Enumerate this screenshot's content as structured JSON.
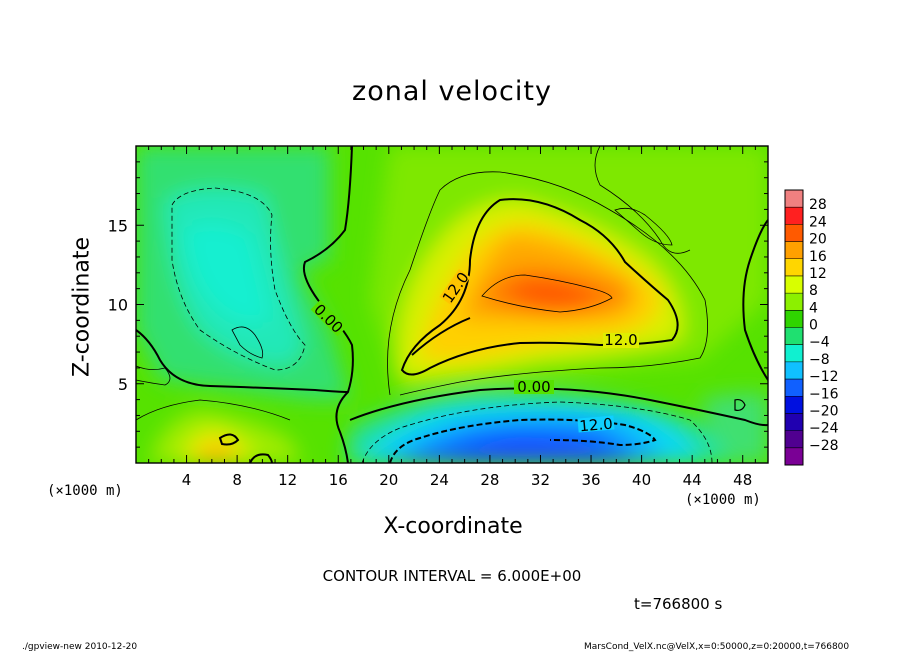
{
  "chart_data": {
    "type": "heatmap",
    "title": "zonal velocity",
    "xlabel": "X-coordinate",
    "ylabel": "Z-coordinate",
    "x_unit_left": "(×1000 m)",
    "x_unit_right": "(×1000 m)",
    "xlim": [
      0,
      50
    ],
    "ylim": [
      0,
      20
    ],
    "x_ticks": [
      4,
      8,
      12,
      16,
      20,
      24,
      28,
      32,
      36,
      40,
      44,
      48
    ],
    "y_ticks": [
      5,
      10,
      15
    ],
    "colorbar": {
      "levels": [
        28,
        24,
        20,
        16,
        12,
        8,
        4,
        0,
        -4,
        -8,
        -12,
        -16,
        -20,
        -24,
        -28
      ],
      "colors": [
        "#f08080",
        "#ff2020",
        "#ff5a00",
        "#ffa000",
        "#ffd600",
        "#d8ff00",
        "#8cf000",
        "#2fd400",
        "#1fe070",
        "#10f0d0",
        "#10c0ff",
        "#1060ff",
        "#0010e0",
        "#2000b0",
        "#500090",
        "#7a0095"
      ]
    },
    "contour_labels": [
      "0.00",
      "12.0",
      "12.0",
      "0.00",
      "12.0"
    ],
    "contour_interval": "CONTOUR INTERVAL = 6.000E+00",
    "time": "t=766800 s",
    "footer_left": "./gpview-new  2010-12-20",
    "footer_right": "MarsCond_VelX.nc@VelX,x=0:50000,z=0:20000,t=766800"
  }
}
